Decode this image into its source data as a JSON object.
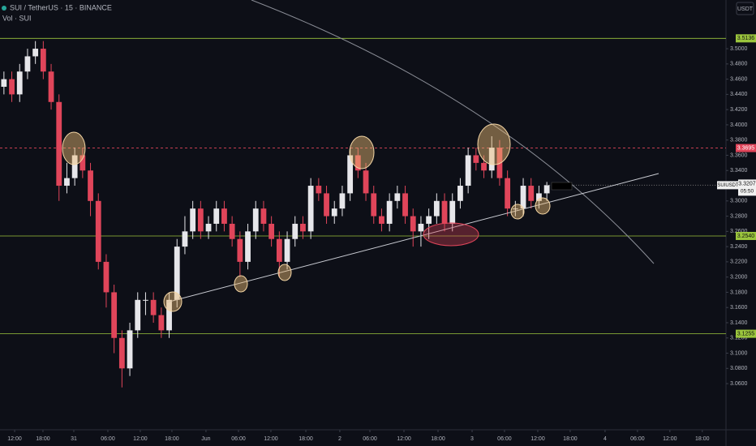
{
  "chart_data": {
    "type": "candlestick",
    "title": "SUI / TetherUS · 15 · BINANCE",
    "subtitle": "Vol · SUI",
    "currency_button": "USDT",
    "symbol_tag": "SUIUSDT",
    "countdown": "05:50",
    "up_color": "#e6e6ea",
    "down_color": "#e0455a",
    "open": [
      3.45,
      3.46,
      3.44,
      3.47,
      3.49,
      3.5,
      3.47,
      3.43,
      3.32,
      3.33,
      3.36,
      3.34,
      3.3,
      3.22,
      3.18,
      3.12,
      3.08,
      3.13,
      3.17,
      3.17,
      3.15,
      3.13,
      3.17,
      3.24,
      3.26,
      3.29,
      3.26,
      3.27,
      3.29,
      3.27,
      3.25,
      3.22,
      3.26,
      3.29,
      3.27,
      3.25,
      3.22,
      3.25,
      3.27,
      3.26,
      3.32,
      3.31,
      3.28,
      3.29,
      3.31,
      3.36,
      3.34,
      3.31,
      3.28,
      3.27,
      3.3,
      3.31,
      3.28,
      3.26,
      3.27,
      3.28,
      3.3,
      3.27,
      3.3,
      3.32,
      3.36,
      3.35,
      3.34,
      3.37,
      3.33,
      3.29,
      3.29,
      3.32,
      3.3,
      3.31
    ],
    "high": [
      3.47,
      3.47,
      3.48,
      3.5,
      3.51,
      3.51,
      3.48,
      3.44,
      3.35,
      3.37,
      3.37,
      3.35,
      3.31,
      3.23,
      3.19,
      3.13,
      3.14,
      3.18,
      3.18,
      3.18,
      3.16,
      3.18,
      3.25,
      3.28,
      3.3,
      3.3,
      3.28,
      3.3,
      3.3,
      3.28,
      3.26,
      3.27,
      3.3,
      3.3,
      3.28,
      3.26,
      3.26,
      3.28,
      3.28,
      3.33,
      3.33,
      3.32,
      3.3,
      3.32,
      3.37,
      3.37,
      3.35,
      3.32,
      3.29,
      3.31,
      3.32,
      3.32,
      3.29,
      3.28,
      3.29,
      3.31,
      3.31,
      3.31,
      3.33,
      3.37,
      3.37,
      3.36,
      3.385,
      3.38,
      3.34,
      3.3,
      3.33,
      3.33,
      3.32,
      3.325
    ],
    "low": [
      3.44,
      3.43,
      3.43,
      3.46,
      3.48,
      3.46,
      3.42,
      3.3,
      3.31,
      3.32,
      3.33,
      3.28,
      3.21,
      3.16,
      3.1,
      3.055,
      3.07,
      3.12,
      3.15,
      3.14,
      3.12,
      3.12,
      3.16,
      3.23,
      3.25,
      3.25,
      3.25,
      3.26,
      3.26,
      3.24,
      3.2,
      3.21,
      3.25,
      3.26,
      3.24,
      3.2,
      3.21,
      3.24,
      3.25,
      3.25,
      3.3,
      3.27,
      3.27,
      3.28,
      3.3,
      3.33,
      3.3,
      3.27,
      3.26,
      3.26,
      3.29,
      3.27,
      3.24,
      3.24,
      3.25,
      3.27,
      3.26,
      3.26,
      3.29,
      3.31,
      3.34,
      3.33,
      3.33,
      3.32,
      3.28,
      3.28,
      3.28,
      3.29,
      3.29,
      3.3
    ],
    "close": [
      3.46,
      3.44,
      3.47,
      3.49,
      3.5,
      3.47,
      3.43,
      3.32,
      3.33,
      3.36,
      3.34,
      3.3,
      3.22,
      3.18,
      3.12,
      3.08,
      3.13,
      3.17,
      3.17,
      3.15,
      3.13,
      3.17,
      3.24,
      3.26,
      3.29,
      3.26,
      3.27,
      3.29,
      3.27,
      3.25,
      3.22,
      3.26,
      3.29,
      3.27,
      3.25,
      3.22,
      3.25,
      3.27,
      3.26,
      3.32,
      3.31,
      3.28,
      3.29,
      3.31,
      3.36,
      3.34,
      3.31,
      3.28,
      3.27,
      3.3,
      3.31,
      3.28,
      3.26,
      3.27,
      3.28,
      3.3,
      3.27,
      3.3,
      3.32,
      3.36,
      3.35,
      3.34,
      3.37,
      3.33,
      3.29,
      3.29,
      3.32,
      3.3,
      3.31,
      3.3207
    ],
    "ylim": [
      3.01,
      3.564
    ],
    "yticks": [
      {
        "value": 3.06,
        "label": "3.0600"
      },
      {
        "value": 3.08,
        "label": "3.0800"
      },
      {
        "value": 3.1,
        "label": "3.1000"
      },
      {
        "value": 3.12,
        "label": "3.1200"
      },
      {
        "value": 3.14,
        "label": "3.1400"
      },
      {
        "value": 3.16,
        "label": "3.1600"
      },
      {
        "value": 3.18,
        "label": "3.1800"
      },
      {
        "value": 3.2,
        "label": "3.2000"
      },
      {
        "value": 3.22,
        "label": "3.2200"
      },
      {
        "value": 3.24,
        "label": "3.2400"
      },
      {
        "value": 3.26,
        "label": "3.2600"
      },
      {
        "value": 3.28,
        "label": "3.2800"
      },
      {
        "value": 3.3,
        "label": "3.3000"
      },
      {
        "value": 3.32,
        "label": "3.3200"
      },
      {
        "value": 3.34,
        "label": "3.3400"
      },
      {
        "value": 3.36,
        "label": "3.3600"
      },
      {
        "value": 3.38,
        "label": "3.3800"
      },
      {
        "value": 3.4,
        "label": "3.4000"
      },
      {
        "value": 3.42,
        "label": "3.4200"
      },
      {
        "value": 3.44,
        "label": "3.4400"
      },
      {
        "value": 3.46,
        "label": "3.4600"
      },
      {
        "value": 3.48,
        "label": "3.4800"
      },
      {
        "value": 3.5,
        "label": "3.5000"
      }
    ],
    "xlim": [
      -0.5,
      91.77
    ],
    "xticks": [
      {
        "value": 1.36,
        "label": "12:00"
      },
      {
        "value": 4.96,
        "label": "18:00"
      },
      {
        "value": 8.88,
        "label": "31"
      },
      {
        "value": 13.21,
        "label": "06:00"
      },
      {
        "value": 17.33,
        "label": "12:00"
      },
      {
        "value": 21.35,
        "label": "18:00"
      },
      {
        "value": 25.68,
        "label": "Jun"
      },
      {
        "value": 29.81,
        "label": "06:00"
      },
      {
        "value": 33.93,
        "label": "12:00"
      },
      {
        "value": 38.37,
        "label": "18:00"
      },
      {
        "value": 42.69,
        "label": "2"
      },
      {
        "value": 46.51,
        "label": "06:00"
      },
      {
        "value": 50.84,
        "label": "12:00"
      },
      {
        "value": 55.17,
        "label": "18:00"
      },
      {
        "value": 59.5,
        "label": "3"
      },
      {
        "value": 63.62,
        "label": "06:00"
      },
      {
        "value": 67.85,
        "label": "12:00"
      },
      {
        "value": 71.97,
        "label": "18:00"
      },
      {
        "value": 76.4,
        "label": "4"
      },
      {
        "value": 80.52,
        "label": "06:00"
      },
      {
        "value": 84.64,
        "label": "12:00"
      },
      {
        "value": 88.76,
        "label": "18:00"
      }
    ],
    "hlines": [
      {
        "value": 3.5136,
        "label": "3.5136",
        "color": "#9bc53d",
        "dashed": false
      },
      {
        "value": 3.3695,
        "label": "3.3695",
        "color": "#e0455a",
        "dashed": true
      },
      {
        "value": 3.254,
        "label": "3.2540",
        "color": "#9bc53d",
        "dashed": false
      },
      {
        "value": 3.1255,
        "label": "3.1255",
        "color": "#9bc53d",
        "dashed": false
      }
    ],
    "grid": false
  }
}
